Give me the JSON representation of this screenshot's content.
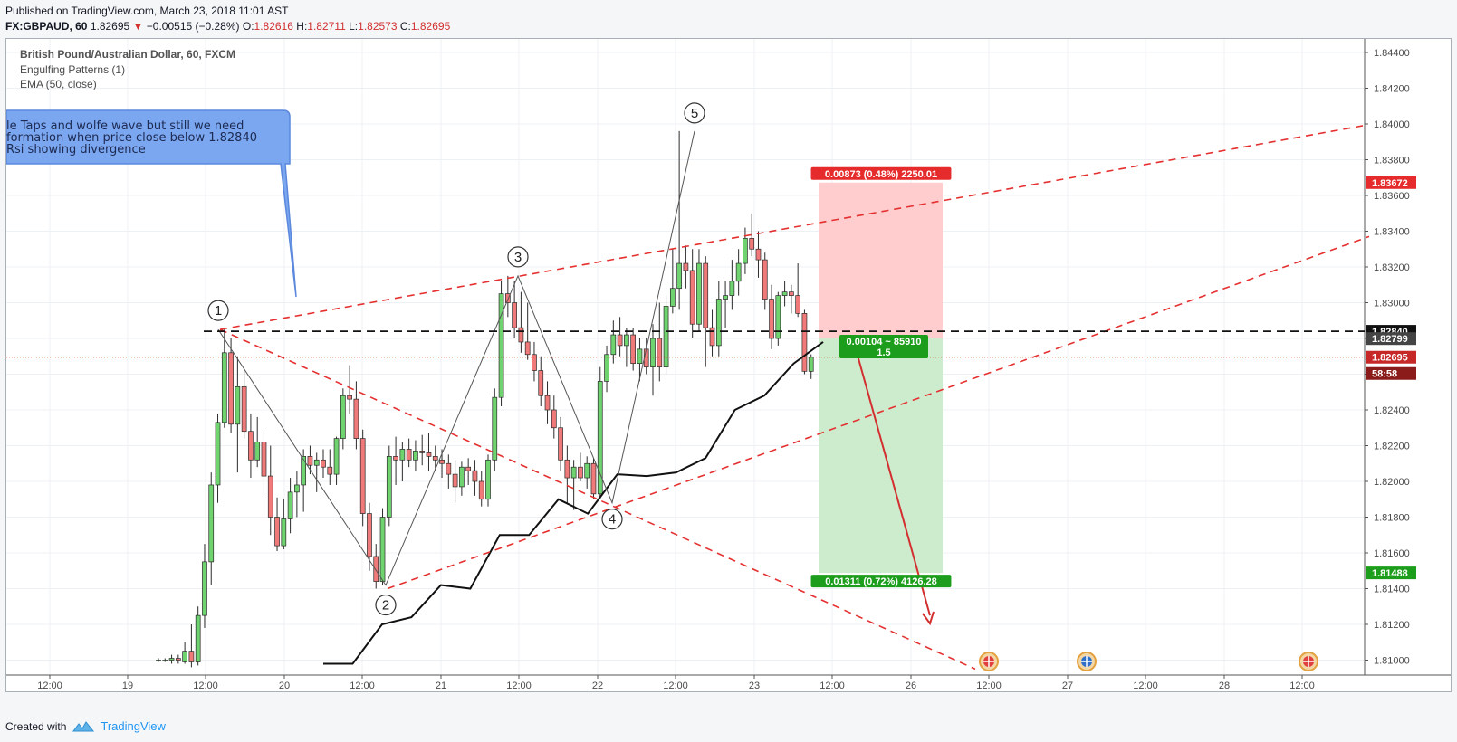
{
  "header": {
    "published": "Published on TradingView.com, March 23, 2018 11:01 AST",
    "symbol": "FX:GBPAUD, 60",
    "last": "1.82695",
    "change_arrow": "▼",
    "change": "−0.00515 (−0.28%)",
    "o_label": "O:",
    "o": "1.82616",
    "h_label": "H:",
    "h": "1.82711",
    "l_label": "L:",
    "l": "1.82573",
    "c_label": "C:",
    "c": "1.82695"
  },
  "legend": {
    "title": "British Pound/Australian Dollar, 60, FXCM",
    "study1": "Engulfing Patterns (1)",
    "study2": "EMA (50, close)"
  },
  "note": {
    "lines": [
      "le Taps  and  wolfe wave but still we need",
      "formation when price close below 1.82840",
      " Rsi showing divergence"
    ]
  },
  "wave_labels": [
    "1",
    "2",
    "3",
    "4",
    "5"
  ],
  "position": {
    "stop_label": "0.00873 (0.48%) 2250.01",
    "target_label": "0.01311 (0.72%) 4126.28",
    "center_label_1": "0.00104 ~ 85910",
    "center_label_2": "1.5"
  },
  "price_tags": {
    "stop": "1.83672",
    "level": "1.82840",
    "entry": "1.82799",
    "last": "1.82695",
    "countdown": "58:58",
    "target": "1.81488"
  },
  "footer": {
    "created_with": "Created with",
    "brand": "TradingView"
  },
  "chart_data": {
    "type": "candlestick",
    "title": "British Pound/Australian Dollar, 60, FXCM",
    "symbol": "FX:GBPAUD",
    "timeframe": "60",
    "ylim": [
      1.8092,
      1.8458
    ],
    "y_ticks": [
      "1.84400",
      "1.84200",
      "1.84000",
      "1.83800",
      "1.83600",
      "1.83400",
      "1.83200",
      "1.83000",
      "1.82800",
      "1.82600",
      "1.82400",
      "1.82200",
      "1.82000",
      "1.81800",
      "1.81600",
      "1.81400",
      "1.81200",
      "1.81000"
    ],
    "x_ticks": [
      "12:00",
      "19",
      "12:00",
      "20",
      "12:00",
      "21",
      "12:00",
      "22",
      "12:00",
      "23",
      "12:00",
      "26",
      "12:00",
      "27",
      "12:00",
      "28",
      "12:00"
    ],
    "candles": [
      {
        "o": 1.81,
        "h": 1.8101,
        "l": 1.8099,
        "c": 1.81
      },
      {
        "o": 1.81,
        "h": 1.8101,
        "l": 1.8099,
        "c": 1.81
      },
      {
        "o": 1.81,
        "h": 1.8103,
        "l": 1.8098,
        "c": 1.8101
      },
      {
        "o": 1.8101,
        "h": 1.8103,
        "l": 1.8098,
        "c": 1.81
      },
      {
        "o": 1.8099,
        "h": 1.811,
        "l": 1.8098,
        "c": 1.8105
      },
      {
        "o": 1.8105,
        "h": 1.812,
        "l": 1.8096,
        "c": 1.8099
      },
      {
        "o": 1.8099,
        "h": 1.813,
        "l": 1.8097,
        "c": 1.8125
      },
      {
        "o": 1.8125,
        "h": 1.8165,
        "l": 1.8118,
        "c": 1.8155
      },
      {
        "o": 1.8155,
        "h": 1.8205,
        "l": 1.8142,
        "c": 1.8198
      },
      {
        "o": 1.8198,
        "h": 1.8238,
        "l": 1.8188,
        "c": 1.8233
      },
      {
        "o": 1.8233,
        "h": 1.8285,
        "l": 1.823,
        "c": 1.8272
      },
      {
        "o": 1.8272,
        "h": 1.828,
        "l": 1.8227,
        "c": 1.8232
      },
      {
        "o": 1.8232,
        "h": 1.827,
        "l": 1.8205,
        "c": 1.8253
      },
      {
        "o": 1.8253,
        "h": 1.8262,
        "l": 1.8224,
        "c": 1.8228
      },
      {
        "o": 1.8228,
        "h": 1.8238,
        "l": 1.8202,
        "c": 1.8212
      },
      {
        "o": 1.8212,
        "h": 1.8236,
        "l": 1.8208,
        "c": 1.8222
      },
      {
        "o": 1.8222,
        "h": 1.823,
        "l": 1.8192,
        "c": 1.8203
      },
      {
        "o": 1.8203,
        "h": 1.822,
        "l": 1.817,
        "c": 1.818
      },
      {
        "o": 1.818,
        "h": 1.8191,
        "l": 1.8161,
        "c": 1.8164
      },
      {
        "o": 1.8164,
        "h": 1.819,
        "l": 1.8162,
        "c": 1.8179
      },
      {
        "o": 1.8179,
        "h": 1.8202,
        "l": 1.8171,
        "c": 1.8194
      },
      {
        "o": 1.8194,
        "h": 1.8206,
        "l": 1.818,
        "c": 1.8198
      },
      {
        "o": 1.8198,
        "h": 1.8218,
        "l": 1.8183,
        "c": 1.8214
      },
      {
        "o": 1.8214,
        "h": 1.822,
        "l": 1.8204,
        "c": 1.8209
      },
      {
        "o": 1.8209,
        "h": 1.8216,
        "l": 1.8194,
        "c": 1.8212
      },
      {
        "o": 1.8212,
        "h": 1.8218,
        "l": 1.8202,
        "c": 1.8208
      },
      {
        "o": 1.8208,
        "h": 1.8218,
        "l": 1.8198,
        "c": 1.8204
      },
      {
        "o": 1.8204,
        "h": 1.8225,
        "l": 1.8198,
        "c": 1.8224
      },
      {
        "o": 1.8224,
        "h": 1.8252,
        "l": 1.8218,
        "c": 1.8248
      },
      {
        "o": 1.8248,
        "h": 1.8265,
        "l": 1.8238,
        "c": 1.8246
      },
      {
        "o": 1.8246,
        "h": 1.8256,
        "l": 1.8218,
        "c": 1.8224
      },
      {
        "o": 1.8224,
        "h": 1.8229,
        "l": 1.8175,
        "c": 1.8182
      },
      {
        "o": 1.8182,
        "h": 1.8188,
        "l": 1.815,
        "c": 1.8158
      },
      {
        "o": 1.8158,
        "h": 1.8165,
        "l": 1.814,
        "c": 1.8144
      },
      {
        "o": 1.8144,
        "h": 1.8185,
        "l": 1.8142,
        "c": 1.818
      },
      {
        "o": 1.818,
        "h": 1.822,
        "l": 1.8175,
        "c": 1.8214
      },
      {
        "o": 1.8214,
        "h": 1.8225,
        "l": 1.8198,
        "c": 1.8212
      },
      {
        "o": 1.8212,
        "h": 1.8222,
        "l": 1.82,
        "c": 1.8218
      },
      {
        "o": 1.8218,
        "h": 1.8224,
        "l": 1.8208,
        "c": 1.8212
      },
      {
        "o": 1.8212,
        "h": 1.8223,
        "l": 1.8206,
        "c": 1.8217
      },
      {
        "o": 1.8217,
        "h": 1.8226,
        "l": 1.8209,
        "c": 1.8216
      },
      {
        "o": 1.8216,
        "h": 1.8227,
        "l": 1.8206,
        "c": 1.8214
      },
      {
        "o": 1.8214,
        "h": 1.822,
        "l": 1.8206,
        "c": 1.8212
      },
      {
        "o": 1.8212,
        "h": 1.8218,
        "l": 1.8202,
        "c": 1.821
      },
      {
        "o": 1.821,
        "h": 1.8215,
        "l": 1.8196,
        "c": 1.8204
      },
      {
        "o": 1.8204,
        "h": 1.8212,
        "l": 1.8188,
        "c": 1.8197
      },
      {
        "o": 1.8197,
        "h": 1.8211,
        "l": 1.8192,
        "c": 1.8208
      },
      {
        "o": 1.8208,
        "h": 1.8213,
        "l": 1.8198,
        "c": 1.8206
      },
      {
        "o": 1.8206,
        "h": 1.8212,
        "l": 1.8192,
        "c": 1.82
      },
      {
        "o": 1.82,
        "h": 1.8206,
        "l": 1.8186,
        "c": 1.819
      },
      {
        "o": 1.819,
        "h": 1.8215,
        "l": 1.8186,
        "c": 1.8212
      },
      {
        "o": 1.8212,
        "h": 1.8252,
        "l": 1.8206,
        "c": 1.8247
      },
      {
        "o": 1.8247,
        "h": 1.8312,
        "l": 1.8242,
        "c": 1.8305
      },
      {
        "o": 1.8305,
        "h": 1.8315,
        "l": 1.8292,
        "c": 1.83
      },
      {
        "o": 1.83,
        "h": 1.8312,
        "l": 1.828,
        "c": 1.8286
      },
      {
        "o": 1.8286,
        "h": 1.8306,
        "l": 1.8272,
        "c": 1.8278
      },
      {
        "o": 1.8278,
        "h": 1.83,
        "l": 1.8268,
        "c": 1.8271
      },
      {
        "o": 1.8271,
        "h": 1.8278,
        "l": 1.8256,
        "c": 1.8262
      },
      {
        "o": 1.8262,
        "h": 1.827,
        "l": 1.8242,
        "c": 1.8248
      },
      {
        "o": 1.8248,
        "h": 1.8256,
        "l": 1.8232,
        "c": 1.824
      },
      {
        "o": 1.824,
        "h": 1.8248,
        "l": 1.8224,
        "c": 1.823
      },
      {
        "o": 1.823,
        "h": 1.8236,
        "l": 1.8206,
        "c": 1.8212
      },
      {
        "o": 1.8212,
        "h": 1.822,
        "l": 1.8188,
        "c": 1.8202
      },
      {
        "o": 1.8202,
        "h": 1.8212,
        "l": 1.8184,
        "c": 1.8208
      },
      {
        "o": 1.8208,
        "h": 1.8216,
        "l": 1.82,
        "c": 1.8202
      },
      {
        "o": 1.8202,
        "h": 1.8214,
        "l": 1.8196,
        "c": 1.821
      },
      {
        "o": 1.821,
        "h": 1.8213,
        "l": 1.819,
        "c": 1.8193
      },
      {
        "o": 1.8193,
        "h": 1.8264,
        "l": 1.819,
        "c": 1.8256
      },
      {
        "o": 1.8256,
        "h": 1.8276,
        "l": 1.825,
        "c": 1.8271
      },
      {
        "o": 1.8271,
        "h": 1.829,
        "l": 1.8266,
        "c": 1.8282
      },
      {
        "o": 1.8282,
        "h": 1.8292,
        "l": 1.827,
        "c": 1.8276
      },
      {
        "o": 1.8276,
        "h": 1.8286,
        "l": 1.8264,
        "c": 1.8282
      },
      {
        "o": 1.8282,
        "h": 1.8286,
        "l": 1.8262,
        "c": 1.8266
      },
      {
        "o": 1.8266,
        "h": 1.828,
        "l": 1.8256,
        "c": 1.8274
      },
      {
        "o": 1.8274,
        "h": 1.828,
        "l": 1.826,
        "c": 1.8264
      },
      {
        "o": 1.8264,
        "h": 1.8288,
        "l": 1.8248,
        "c": 1.828
      },
      {
        "o": 1.828,
        "h": 1.83,
        "l": 1.8256,
        "c": 1.8264
      },
      {
        "o": 1.8264,
        "h": 1.8304,
        "l": 1.826,
        "c": 1.8298
      },
      {
        "o": 1.8298,
        "h": 1.833,
        "l": 1.8294,
        "c": 1.8308
      },
      {
        "o": 1.8308,
        "h": 1.8396,
        "l": 1.8296,
        "c": 1.8322
      },
      {
        "o": 1.8322,
        "h": 1.8332,
        "l": 1.8308,
        "c": 1.8318
      },
      {
        "o": 1.8318,
        "h": 1.833,
        "l": 1.828,
        "c": 1.8288
      },
      {
        "o": 1.8288,
        "h": 1.833,
        "l": 1.8284,
        "c": 1.8322
      },
      {
        "o": 1.8322,
        "h": 1.8326,
        "l": 1.8264,
        "c": 1.8286
      },
      {
        "o": 1.8286,
        "h": 1.8296,
        "l": 1.827,
        "c": 1.8276
      },
      {
        "o": 1.8276,
        "h": 1.8312,
        "l": 1.827,
        "c": 1.8302
      },
      {
        "o": 1.8302,
        "h": 1.8312,
        "l": 1.8286,
        "c": 1.8304
      },
      {
        "o": 1.8304,
        "h": 1.8324,
        "l": 1.8296,
        "c": 1.8312
      },
      {
        "o": 1.8312,
        "h": 1.833,
        "l": 1.8304,
        "c": 1.8322
      },
      {
        "o": 1.8322,
        "h": 1.8342,
        "l": 1.8316,
        "c": 1.8336
      },
      {
        "o": 1.8336,
        "h": 1.835,
        "l": 1.8326,
        "c": 1.833
      },
      {
        "o": 1.833,
        "h": 1.834,
        "l": 1.8314,
        "c": 1.8324
      },
      {
        "o": 1.8324,
        "h": 1.8328,
        "l": 1.8296,
        "c": 1.8302
      },
      {
        "o": 1.8302,
        "h": 1.831,
        "l": 1.8274,
        "c": 1.828
      },
      {
        "o": 1.828,
        "h": 1.8306,
        "l": 1.8276,
        "c": 1.8304
      },
      {
        "o": 1.8304,
        "h": 1.8312,
        "l": 1.8298,
        "c": 1.8306
      },
      {
        "o": 1.8306,
        "h": 1.831,
        "l": 1.8294,
        "c": 1.8304
      },
      {
        "o": 1.8304,
        "h": 1.8322,
        "l": 1.8292,
        "c": 1.8294
      },
      {
        "o": 1.8294,
        "h": 1.8296,
        "l": 1.826,
        "c": 1.82616
      },
      {
        "o": 1.82616,
        "h": 1.82711,
        "l": 1.82573,
        "c": 1.82695
      }
    ],
    "ema50": [
      [
        1.8098,
        1.8098
      ],
      [
        1.812,
        1.8124
      ],
      [
        1.8142,
        1.814
      ],
      [
        1.817,
        1.817
      ],
      [
        1.819,
        1.8182
      ],
      [
        1.8204,
        1.8203
      ],
      [
        1.8205,
        1.8213
      ],
      [
        1.824,
        1.8248
      ],
      [
        1.8266,
        1.8278
      ]
    ],
    "levels": {
      "stop": 1.83672,
      "resistance": 1.8284,
      "entry": 1.82799,
      "last": 1.82695,
      "target": 1.81488
    },
    "wave_points": {
      "1": 1.8285,
      "2": 1.8142,
      "3": 1.8315,
      "4": 1.8188,
      "5": 1.8396
    }
  }
}
